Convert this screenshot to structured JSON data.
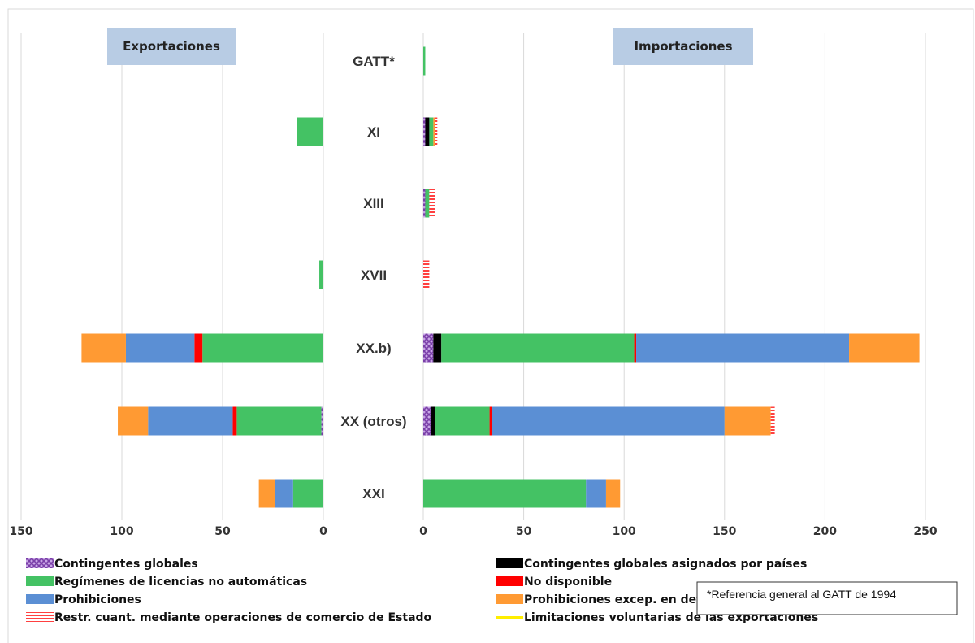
{
  "chart_data": {
    "type": "bar",
    "orientation": "horizontal",
    "layout": "butterfly",
    "panels": {
      "left": {
        "title": "Exportaciones",
        "xlim": [
          150,
          0
        ],
        "ticks": [
          "150",
          "100",
          "50",
          "0"
        ]
      },
      "right": {
        "title": "Importaciones",
        "xlim": [
          0,
          250
        ],
        "ticks": [
          "0",
          "50",
          "100",
          "150",
          "200",
          "250"
        ]
      }
    },
    "categories": [
      "GATT*",
      "XI",
      "XIII",
      "XVII",
      "XX.b)",
      "XX (otros)",
      "XXI"
    ],
    "series": [
      {
        "name": "Contingentes globales",
        "color": "#9b59b6",
        "pattern": "crosshatch",
        "exports": [
          0,
          0,
          0,
          0,
          0,
          1,
          0
        ],
        "imports": [
          0,
          1,
          1,
          0,
          5,
          4,
          0
        ]
      },
      {
        "name": "Contingentes globales asignados por países",
        "color": "#000000",
        "exports": [
          0,
          0,
          0,
          0,
          0,
          0,
          0
        ],
        "imports": [
          0,
          2,
          0,
          0,
          4,
          2,
          0
        ]
      },
      {
        "name": "Regímenes de licencias no automáticas",
        "color": "#44c264",
        "exports": [
          0,
          13,
          0,
          2,
          60,
          42,
          15
        ],
        "imports": [
          1,
          2,
          2,
          0,
          96,
          27,
          81
        ]
      },
      {
        "name": "No disponible",
        "color": "#ff0000",
        "exports": [
          0,
          0,
          0,
          0,
          4,
          2,
          0
        ],
        "imports": [
          0,
          0,
          0,
          0,
          1,
          1,
          0
        ]
      },
      {
        "name": "Prohibiciones",
        "color": "#5b8fd4",
        "exports": [
          0,
          0,
          0,
          0,
          34,
          42,
          9
        ],
        "imports": [
          0,
          0,
          0,
          0,
          106,
          116,
          10
        ]
      },
      {
        "name": "Prohibiciones excep. en deter. condiciones",
        "color": "#ff9a33",
        "exports": [
          0,
          0,
          0,
          0,
          22,
          15,
          8
        ],
        "imports": [
          0,
          1,
          0,
          0,
          35,
          23,
          7
        ]
      },
      {
        "name": "Restr. cuant. mediante operaciones de comercio de Estado",
        "color": "#ff4040",
        "pattern": "stripes",
        "exports": [
          0,
          0,
          0,
          0,
          0,
          0,
          0
        ],
        "imports": [
          0,
          1,
          3,
          3,
          0,
          2,
          0
        ]
      },
      {
        "name": "Limitaciones voluntarias de las exportaciones",
        "color": "#ffee00",
        "exports": [
          0,
          0,
          0,
          0,
          0,
          0,
          0
        ],
        "imports": [
          0,
          0,
          0,
          0,
          0,
          0,
          0
        ]
      }
    ],
    "grid": true,
    "legend_position": "bottom",
    "footnote": "*Referencia general al GATT de 1994"
  }
}
